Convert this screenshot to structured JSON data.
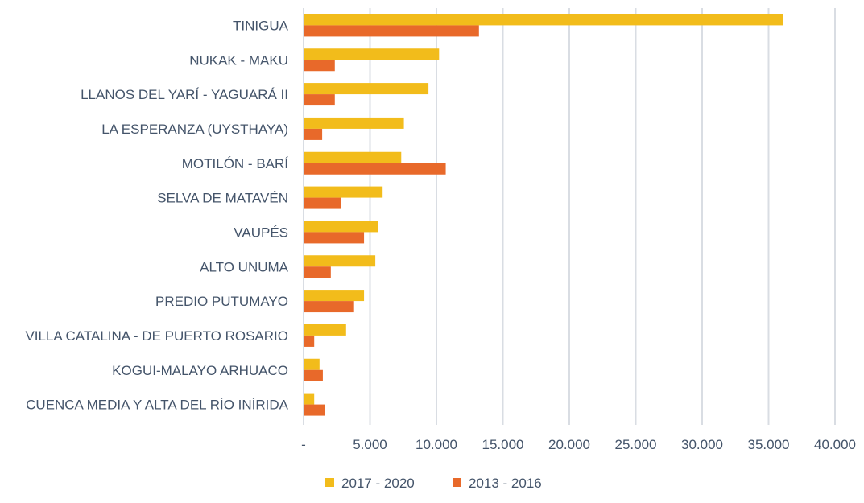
{
  "chart_data": {
    "type": "bar",
    "orientation": "horizontal",
    "title": "",
    "xlabel": "",
    "ylabel": "",
    "categories": [
      "TINIGUA",
      "NUKAK - MAKU",
      "LLANOS DEL YARÍ - YAGUARÁ II",
      "LA ESPERANZA (UYSTHAYA)",
      "MOTILÓN - BARÍ",
      "SELVA DE MATAVÉN",
      "VAUPÉS",
      "ALTO UNUMA",
      "PREDIO PUTUMAYO",
      "VILLA CATALINA - DE PUERTO ROSARIO",
      "KOGUI-MALAYO ARHUACO",
      "CUENCA MEDIA Y ALTA DEL RÍO INÍRIDA"
    ],
    "series": [
      {
        "name": "2017 - 2020",
        "color": "#f2bc1b",
        "values": [
          36100,
          10200,
          9400,
          7550,
          7350,
          5950,
          5600,
          5400,
          4550,
          3200,
          1200,
          800
        ]
      },
      {
        "name": "2013 - 2016",
        "color": "#e8692a",
        "values": [
          13200,
          2350,
          2350,
          1400,
          10700,
          2800,
          4550,
          2050,
          3800,
          800,
          1450,
          1600
        ]
      }
    ],
    "xlim": [
      0,
      40000
    ],
    "xticks": [
      0,
      5000,
      10000,
      15000,
      20000,
      25000,
      30000,
      35000,
      40000
    ],
    "xtick_labels": [
      "-",
      "5.000",
      "10.000",
      "15.000",
      "20.000",
      "25.000",
      "30.000",
      "35.000",
      "40.000"
    ],
    "grid": true,
    "legend_position": "bottom"
  }
}
